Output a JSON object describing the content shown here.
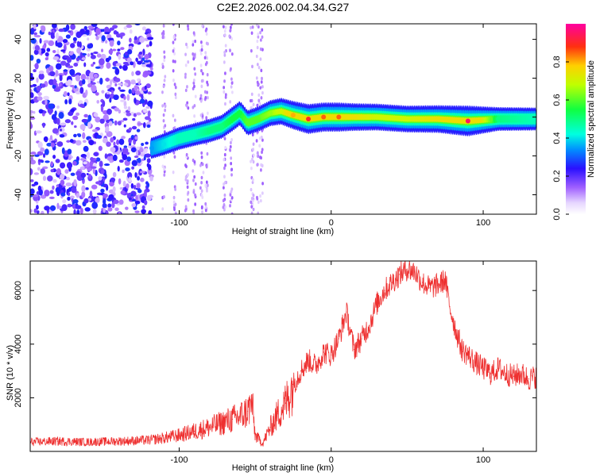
{
  "figure": {
    "title": "C2E2.2026.002.04.34.G27"
  },
  "chart_data": [
    {
      "type": "heatmap",
      "name": "spectrogram",
      "xlabel": "Height of straight line (km)",
      "ylabel": "Frequency (Hz)",
      "xlim": [
        -198,
        135
      ],
      "ylim": [
        -50,
        48
      ],
      "xticks": [
        -100,
        0,
        100
      ],
      "xtick_labels": [
        "-100",
        "0",
        "100"
      ],
      "yticks": [
        -40,
        -20,
        0,
        20,
        40
      ],
      "ytick_labels": [
        "-40",
        "-20",
        "0",
        "20",
        "40"
      ],
      "colorbar": {
        "label": "Normalized spectral amplitude",
        "range": [
          0,
          1
        ],
        "ticks": [
          0.0,
          0.2,
          0.4,
          0.6,
          0.8
        ],
        "tick_labels": [
          "0.0",
          "0.2",
          "0.4",
          "0.6",
          "0.8"
        ]
      },
      "ridge": {
        "x": [
          -118,
          -110,
          -100,
          -90,
          -80,
          -72,
          -65,
          -60,
          -55,
          -48,
          -40,
          -33,
          -25,
          -15,
          -5,
          5,
          15,
          30,
          50,
          70,
          90,
          110,
          135
        ],
        "y": [
          -16,
          -14,
          -11,
          -9,
          -7,
          -5,
          -1,
          2,
          -3,
          -1,
          2,
          3,
          1,
          -1,
          0,
          0,
          0,
          0,
          -1,
          -1,
          -2,
          -1,
          -1
        ],
        "amplitude": [
          0.35,
          0.4,
          0.45,
          0.45,
          0.5,
          0.5,
          0.55,
          0.55,
          0.6,
          0.6,
          0.65,
          0.7,
          0.8,
          0.9,
          0.85,
          0.85,
          0.75,
          0.7,
          0.7,
          0.75,
          0.95,
          0.5,
          0.45
        ]
      }
    },
    {
      "type": "line",
      "name": "snr",
      "xlabel": "Height of straight line (km)",
      "ylabel": "SNR (10 * v/v)",
      "xlim": [
        -198,
        135
      ],
      "ylim": [
        0,
        7100
      ],
      "xticks": [
        -100,
        0,
        100
      ],
      "xtick_labels": [
        "-100",
        "0",
        "100"
      ],
      "yticks": [
        2000,
        4000,
        6000
      ],
      "ytick_labels": [
        "2000",
        "4000",
        "6000"
      ],
      "series": [
        {
          "name": "SNR",
          "color": "#ee3030",
          "x": [
            -198,
            -180,
            -160,
            -140,
            -120,
            -110,
            -100,
            -90,
            -80,
            -70,
            -65,
            -60,
            -55,
            -52,
            -50,
            -45,
            -40,
            -35,
            -30,
            -25,
            -20,
            -15,
            -10,
            -5,
            0,
            5,
            10,
            15,
            20,
            25,
            30,
            35,
            40,
            45,
            50,
            55,
            60,
            65,
            70,
            75,
            78,
            82,
            86,
            90,
            95,
            100,
            105,
            110,
            115,
            120,
            125,
            130,
            135
          ],
          "y": [
            350,
            380,
            350,
            380,
            420,
            500,
            600,
            750,
            900,
            1100,
            1200,
            1300,
            1500,
            1800,
            600,
            300,
            900,
            1400,
            1800,
            2500,
            3000,
            3400,
            3200,
            3700,
            3600,
            4200,
            5200,
            3800,
            4200,
            4700,
            5500,
            6000,
            6300,
            6600,
            6800,
            6700,
            6300,
            6100,
            6200,
            6400,
            5400,
            4500,
            3800,
            3600,
            3300,
            3100,
            2900,
            3100,
            2900,
            2800,
            2900,
            2700,
            2800
          ]
        }
      ]
    }
  ]
}
